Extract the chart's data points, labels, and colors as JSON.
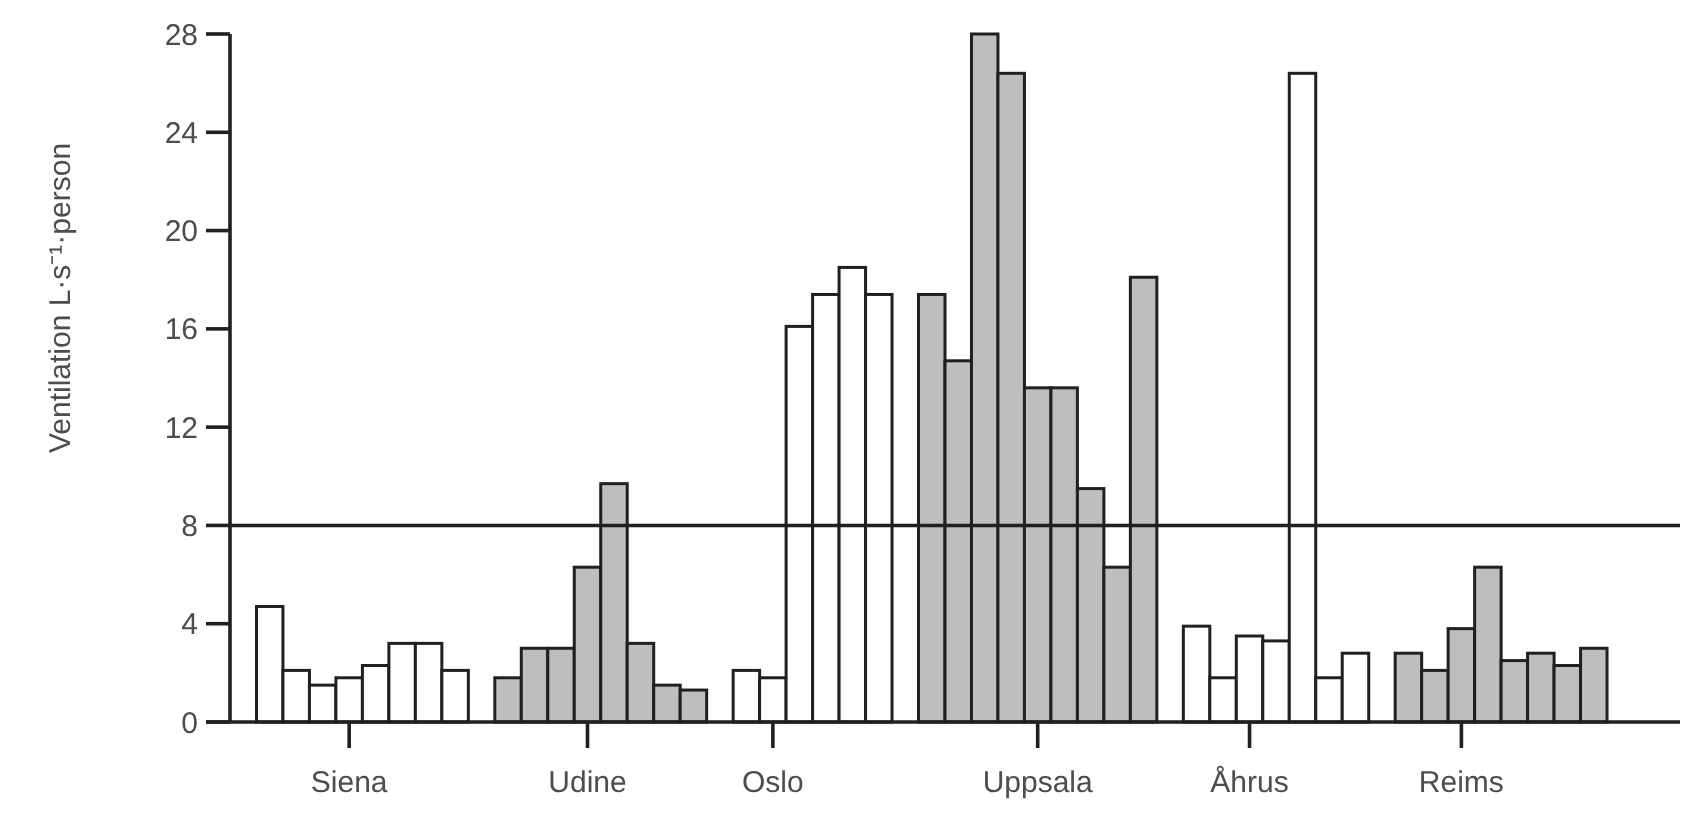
{
  "chart_data": {
    "type": "bar",
    "ylabel": "Ventilation L·s⁻¹·person",
    "categories": [
      null,
      null,
      null,
      null,
      "Siena",
      null,
      null,
      null,
      null,
      null,
      null,
      null,
      null,
      "Udine",
      null,
      null,
      null,
      null,
      null,
      null,
      "Oslo",
      null,
      null,
      null,
      null,
      null,
      null,
      null,
      null,
      null,
      "Uppsala",
      null,
      null,
      null,
      null,
      null,
      null,
      null,
      "Åhrus",
      null,
      null,
      null,
      null,
      null,
      null,
      null,
      "Reims",
      null,
      null,
      null,
      null,
      null,
      null,
      null
    ],
    "series": [
      {
        "color": "#ffffff",
        "values": [
          null,
          4.7,
          2.1,
          1.5,
          1.8,
          2.3,
          3.2,
          3.2,
          2.1,
          null,
          null,
          null,
          null,
          null,
          null,
          null,
          null,
          null,
          null,
          2.1,
          1.8,
          16.1,
          17.4,
          18.5,
          17.4,
          null,
          null,
          null,
          null,
          null,
          null,
          null,
          null,
          null,
          null,
          null,
          3.9,
          1.8,
          3.5,
          3.3,
          26.4,
          1.8,
          2.8,
          null,
          null,
          null,
          null,
          null,
          null,
          null,
          null,
          null,
          null,
          null
        ]
      },
      {
        "color": "#bebebe",
        "values": [
          null,
          null,
          null,
          null,
          null,
          null,
          null,
          null,
          null,
          null,
          1.8,
          3.0,
          3.0,
          6.3,
          9.7,
          3.2,
          1.5,
          1.3,
          null,
          null,
          null,
          null,
          null,
          null,
          null,
          null,
          17.4,
          14.7,
          28,
          26.4,
          13.6,
          13.6,
          9.5,
          6.3,
          18.1,
          null,
          null,
          null,
          null,
          null,
          null,
          null,
          null,
          null,
          2.8,
          2.1,
          3.8,
          6.3,
          2.5,
          2.8,
          2.3,
          3.0,
          null,
          null
        ]
      }
    ],
    "ylim": [
      0,
      28
    ],
    "yticks": [
      0,
      4,
      8,
      12,
      16,
      20,
      24,
      28
    ],
    "grid": false,
    "ref_lines": [
      {
        "axis": "y",
        "value": 8,
        "label": null,
        "color": "#231f20"
      }
    ]
  }
}
